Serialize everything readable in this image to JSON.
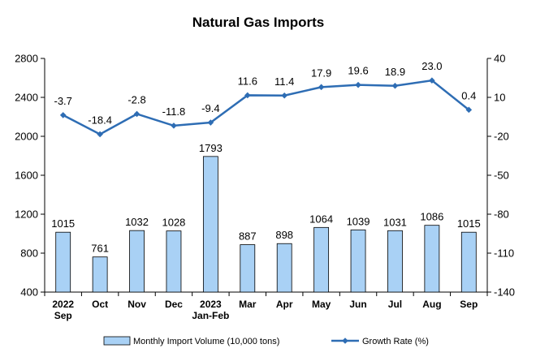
{
  "chart_data": {
    "type": "bar+line",
    "title": "Natural Gas Imports",
    "categories": [
      [
        "2022",
        "Sep"
      ],
      [
        "Oct"
      ],
      [
        "Nov"
      ],
      [
        "Dec"
      ],
      [
        "2023",
        "Jan-Feb"
      ],
      [
        "Mar"
      ],
      [
        "Apr"
      ],
      [
        "May"
      ],
      [
        "Jun"
      ],
      [
        "Jul"
      ],
      [
        "Aug"
      ],
      [
        "Sep"
      ]
    ],
    "series": [
      {
        "name": "Monthly Import Volume (10,000 tons)",
        "type": "bar",
        "axis": "left",
        "color": "#a9d1f5",
        "values": [
          1015,
          761,
          1032,
          1028,
          1793,
          887,
          898,
          1064,
          1039,
          1031,
          1086,
          1015
        ],
        "labels": [
          "1015",
          "761",
          "1032",
          "1028",
          "1793",
          "887",
          "898",
          "1064",
          "1039",
          "1031",
          "1086",
          "1015"
        ]
      },
      {
        "name": "Growth Rate (%)",
        "type": "line",
        "axis": "right",
        "color": "#2e6db4",
        "values": [
          -3.7,
          -18.4,
          -2.8,
          -11.8,
          -9.4,
          11.6,
          11.4,
          17.9,
          19.6,
          18.9,
          23.0,
          0.4
        ],
        "labels": [
          "-3.7",
          "-18.4",
          "-2.8",
          "-11.8",
          "-9.4",
          "11.6",
          "11.4",
          "17.9",
          "19.6",
          "18.9",
          "23.0",
          "0.4"
        ]
      }
    ],
    "y_left": {
      "min": 400,
      "max": 2800,
      "ticks": [
        400,
        800,
        1200,
        1600,
        2000,
        2400,
        2800
      ]
    },
    "y_right": {
      "min": -140,
      "max": 40,
      "ticks": [
        -140,
        -110,
        -80,
        -50,
        -20,
        10,
        40
      ]
    },
    "grid": false,
    "legend_position": "bottom"
  }
}
